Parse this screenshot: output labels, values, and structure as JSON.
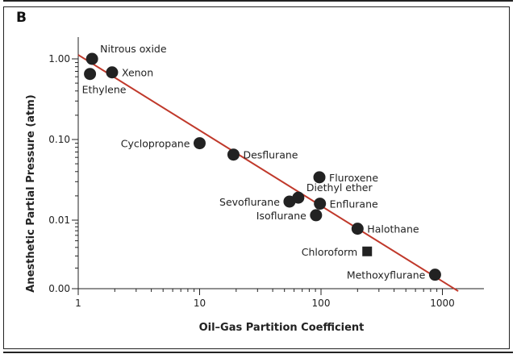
{
  "panel_label": "B",
  "chart_data": {
    "type": "scatter",
    "xlabel": "Oil–Gas Partition Coefficient",
    "ylabel": "Anesthetic Partial Pressure (atm)",
    "xscale": "log",
    "yscale": "log",
    "xlim": [
      1,
      1500
    ],
    "ylim": [
      0.001,
      2
    ],
    "xticks": [
      {
        "value": 1,
        "label": "1"
      },
      {
        "value": 10,
        "label": "10"
      },
      {
        "value": 100,
        "label": "100"
      },
      {
        "value": 1000,
        "label": "1000"
      }
    ],
    "yticks": [
      {
        "value": 1,
        "label": "1.00"
      },
      {
        "value": 0.1,
        "label": "0.10"
      },
      {
        "value": 0.01,
        "label": "0.01"
      },
      {
        "value": 0.001,
        "label": "0.00"
      }
    ],
    "fit_line": {
      "color": "#c0392b",
      "points": [
        [
          1,
          1.12
        ],
        [
          1350,
          0.00092
        ]
      ]
    },
    "points": [
      {
        "name": "Nitrous oxide",
        "x": 1.3,
        "y": 1.0,
        "marker": "circle",
        "label_pos": "right-up"
      },
      {
        "name": "Ethylene",
        "x": 1.25,
        "y": 0.65,
        "marker": "circle",
        "label_pos": "below"
      },
      {
        "name": "Xenon",
        "x": 1.9,
        "y": 0.68,
        "marker": "circle",
        "label_pos": "right"
      },
      {
        "name": "Cyclopropane",
        "x": 10,
        "y": 0.09,
        "marker": "circle",
        "label_pos": "left"
      },
      {
        "name": "Desflurane",
        "x": 19,
        "y": 0.065,
        "marker": "circle",
        "label_pos": "right"
      },
      {
        "name": "Fluroxene",
        "x": 97,
        "y": 0.034,
        "marker": "circle",
        "label_pos": "right"
      },
      {
        "name": "Diethyl ether",
        "x": 65,
        "y": 0.019,
        "marker": "circle",
        "label_pos": "right-up"
      },
      {
        "name": "Sevoflurane",
        "x": 55,
        "y": 0.017,
        "marker": "circle",
        "label_pos": "left"
      },
      {
        "name": "Enflurane",
        "x": 98,
        "y": 0.016,
        "marker": "circle",
        "label_pos": "right"
      },
      {
        "name": "Isoflurane",
        "x": 91,
        "y": 0.0115,
        "marker": "circle",
        "label_pos": "left"
      },
      {
        "name": "Halothane",
        "x": 200,
        "y": 0.0075,
        "marker": "circle",
        "label_pos": "right"
      },
      {
        "name": "Chloroform",
        "x": 240,
        "y": 0.0035,
        "marker": "square",
        "label_pos": "left"
      },
      {
        "name": "Methoxyflurane",
        "x": 870,
        "y": 0.0016,
        "marker": "circle",
        "label_pos": "left"
      }
    ]
  }
}
